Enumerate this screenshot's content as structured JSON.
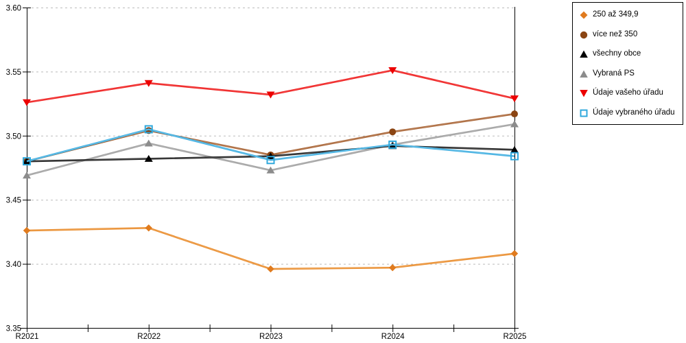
{
  "chart_data": {
    "type": "line",
    "x_categories": [
      "R2021",
      "R2022",
      "R2023",
      "R2024",
      "R2025"
    ],
    "y_ticks": [
      "3.35",
      "3.40",
      "3.45",
      "3.50",
      "3.55",
      "3.60"
    ],
    "ylim": [
      3.35,
      3.6
    ],
    "grid": "horizontal-dashed",
    "legend_position": "outside-top-right",
    "axis_color": "#000000",
    "grid_color": "#bbbbbb",
    "series": [
      {
        "name": "250 až 349,9",
        "marker": "diamond",
        "color": "#e07b1e",
        "line_color": "#e8851f",
        "values": [
          3.426,
          3.428,
          3.396,
          3.397,
          3.408
        ]
      },
      {
        "name": "více než 350",
        "marker": "circle",
        "color": "#8b4513",
        "line_color": "#a35a28",
        "values": [
          3.48,
          3.504,
          3.485,
          3.503,
          3.517
        ]
      },
      {
        "name": "všechny obce",
        "marker": "triangle-up",
        "color": "#000000",
        "line_color": "#141414",
        "values": [
          3.48,
          3.482,
          3.484,
          3.492,
          3.489
        ]
      },
      {
        "name": "Vybraná PS",
        "marker": "triangle-up",
        "color": "#8c8c8c",
        "line_color": "#9a9a9a",
        "values": [
          3.469,
          3.494,
          3.473,
          3.493,
          3.509
        ]
      },
      {
        "name": "Údaje vašeho úřadu",
        "marker": "triangle-down",
        "color": "#ec0000",
        "line_color": "#ee0d0d",
        "values": [
          3.526,
          3.541,
          3.532,
          3.551,
          3.529
        ]
      },
      {
        "name": "Údaje vybraného úřadu",
        "marker": "square-open",
        "color": "#2fa8dc",
        "line_color": "#35aadf",
        "values": [
          3.48,
          3.505,
          3.481,
          3.493,
          3.484
        ]
      }
    ]
  }
}
